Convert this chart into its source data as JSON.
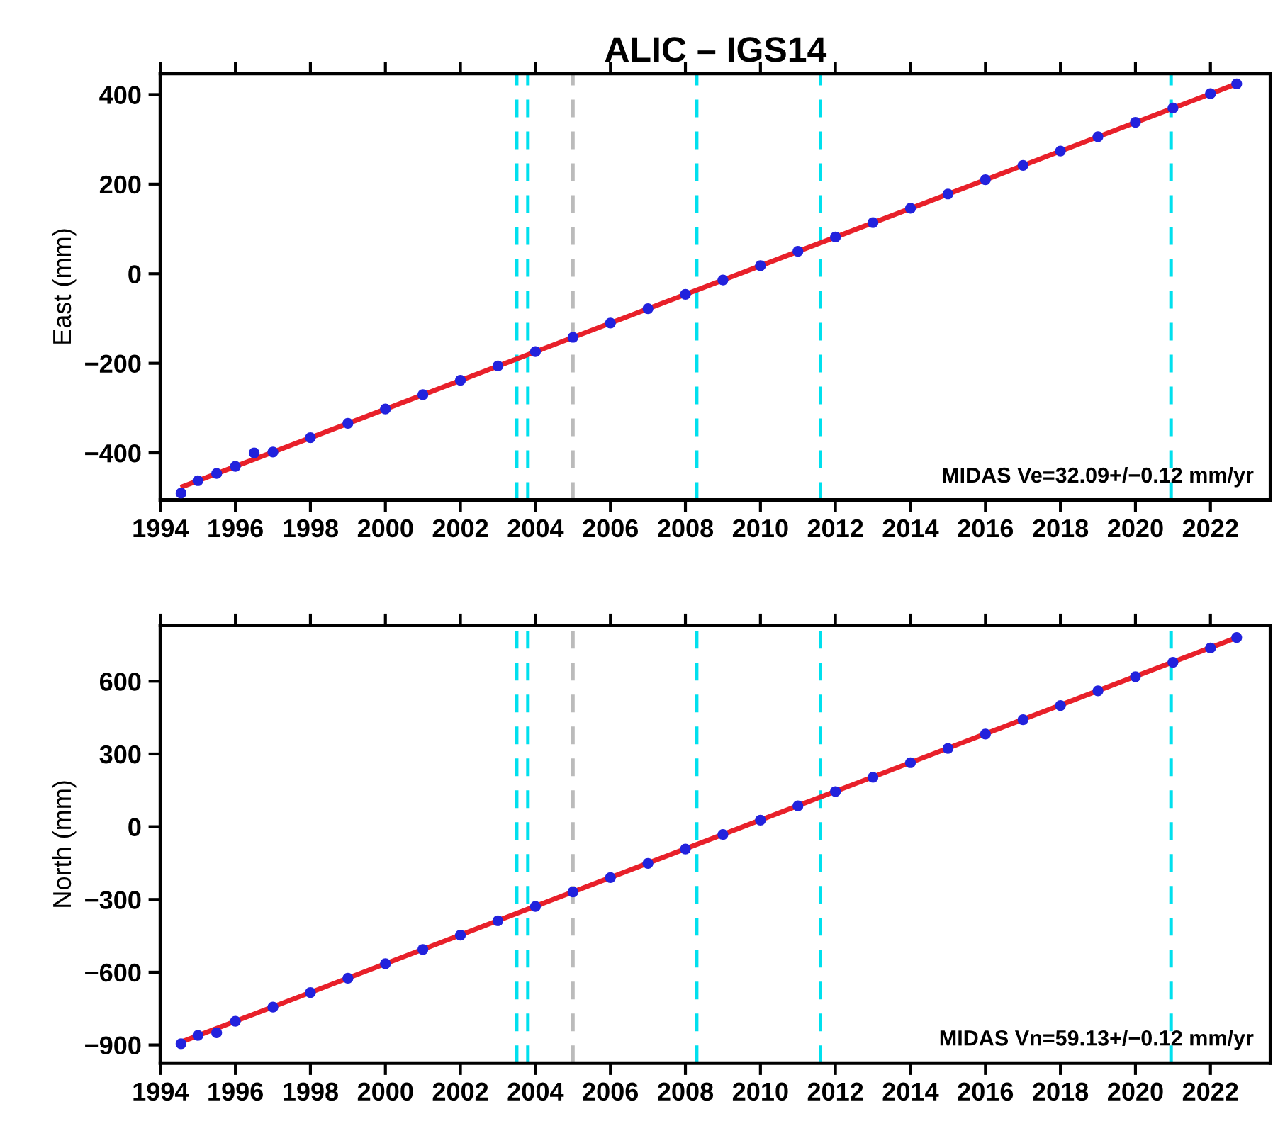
{
  "chart_data": [
    {
      "type": "scatter",
      "title": "ALIC – IGS14",
      "ylabel": "East (mm)",
      "xlim": [
        1994,
        2023.6
      ],
      "xticks": [
        1994,
        1996,
        1998,
        2000,
        2002,
        2004,
        2006,
        2008,
        2010,
        2012,
        2014,
        2016,
        2018,
        2020,
        2022
      ],
      "ylim": [
        -505,
        447
      ],
      "yticks": [
        -400,
        -200,
        0,
        200,
        400
      ],
      "grid": false,
      "legend": false,
      "series": [
        {
          "marker": "circle",
          "color": "#2222dd",
          "x": [
            1994.55,
            1995,
            1995.5,
            1996,
            1996.5,
            1997,
            1998,
            1999,
            2000,
            2001,
            2002,
            2003,
            2004,
            2005,
            2006,
            2007,
            2008,
            2009,
            2010,
            2011,
            2012,
            2013,
            2014,
            2015,
            2016,
            2017,
            2018,
            2019,
            2020,
            2021,
            2022,
            2022.7
          ],
          "values": [
            -490,
            -462,
            -446,
            -430,
            -400,
            -398,
            -366,
            -334,
            -302,
            -270,
            -238,
            -206,
            -174,
            -142,
            -110,
            -78,
            -46,
            -14,
            18,
            50,
            82,
            114,
            146,
            178,
            210,
            242,
            274,
            306,
            338,
            370,
            402,
            424
          ]
        },
        {
          "type": "line",
          "marker": "none",
          "color": "#e8202a",
          "x": [
            1994.6,
            2022.7
          ],
          "values": [
            -475,
            424
          ]
        }
      ],
      "ref_lines": [
        {
          "axis": "x",
          "value": 2003.5,
          "color": "#00e0ee",
          "line_style": "dashed"
        },
        {
          "axis": "x",
          "value": 2003.8,
          "color": "#00e0ee",
          "line_style": "dashed"
        },
        {
          "axis": "x",
          "value": 2005.0,
          "color": "#bbbbbb",
          "line_style": "dashed"
        },
        {
          "axis": "x",
          "value": 2008.3,
          "color": "#00e0ee",
          "line_style": "dashed"
        },
        {
          "axis": "x",
          "value": 2011.6,
          "color": "#00e0ee",
          "line_style": "dashed"
        },
        {
          "axis": "x",
          "value": 2020.95,
          "color": "#00e0ee",
          "line_style": "dashed"
        }
      ],
      "annotations": [
        "MIDAS Ve=32.09+/−0.12 mm/yr"
      ]
    },
    {
      "type": "scatter",
      "ylabel": "North (mm)",
      "xlim": [
        1994,
        2023.6
      ],
      "xticks": [
        1994,
        1996,
        1998,
        2000,
        2002,
        2004,
        2006,
        2008,
        2010,
        2012,
        2014,
        2016,
        2018,
        2020,
        2022
      ],
      "ylim": [
        -975,
        830
      ],
      "yticks": [
        -900,
        -600,
        -300,
        0,
        300,
        600
      ],
      "grid": false,
      "legend": false,
      "series": [
        {
          "marker": "circle",
          "color": "#2222dd",
          "x": [
            1994.55,
            1995,
            1995.5,
            1996,
            1997,
            1998,
            1999,
            2000,
            2001,
            2002,
            2003,
            2004,
            2005,
            2006,
            2007,
            2008,
            2009,
            2010,
            2011,
            2012,
            2013,
            2014,
            2015,
            2016,
            2017,
            2018,
            2019,
            2020,
            2021,
            2022,
            2022.7
          ],
          "values": [
            -895,
            -861,
            -850,
            -802,
            -744,
            -684,
            -625,
            -565,
            -506,
            -447,
            -388,
            -329,
            -269,
            -210,
            -151,
            -92,
            -32,
            27,
            86,
            145,
            204,
            264,
            323,
            382,
            441,
            500,
            560,
            619,
            678,
            737,
            780
          ]
        },
        {
          "type": "line",
          "marker": "none",
          "color": "#e8202a",
          "x": [
            1994.6,
            2022.7
          ],
          "values": [
            -885,
            780
          ]
        }
      ],
      "ref_lines": [
        {
          "axis": "x",
          "value": 2003.5,
          "color": "#00e0ee",
          "line_style": "dashed"
        },
        {
          "axis": "x",
          "value": 2003.8,
          "color": "#00e0ee",
          "line_style": "dashed"
        },
        {
          "axis": "x",
          "value": 2005.0,
          "color": "#bbbbbb",
          "line_style": "dashed"
        },
        {
          "axis": "x",
          "value": 2008.3,
          "color": "#00e0ee",
          "line_style": "dashed"
        },
        {
          "axis": "x",
          "value": 2011.6,
          "color": "#00e0ee",
          "line_style": "dashed"
        },
        {
          "axis": "x",
          "value": 2020.95,
          "color": "#00e0ee",
          "line_style": "dashed"
        }
      ],
      "annotations": [
        "MIDAS Vn=59.13+/−0.12 mm/yr"
      ]
    }
  ]
}
